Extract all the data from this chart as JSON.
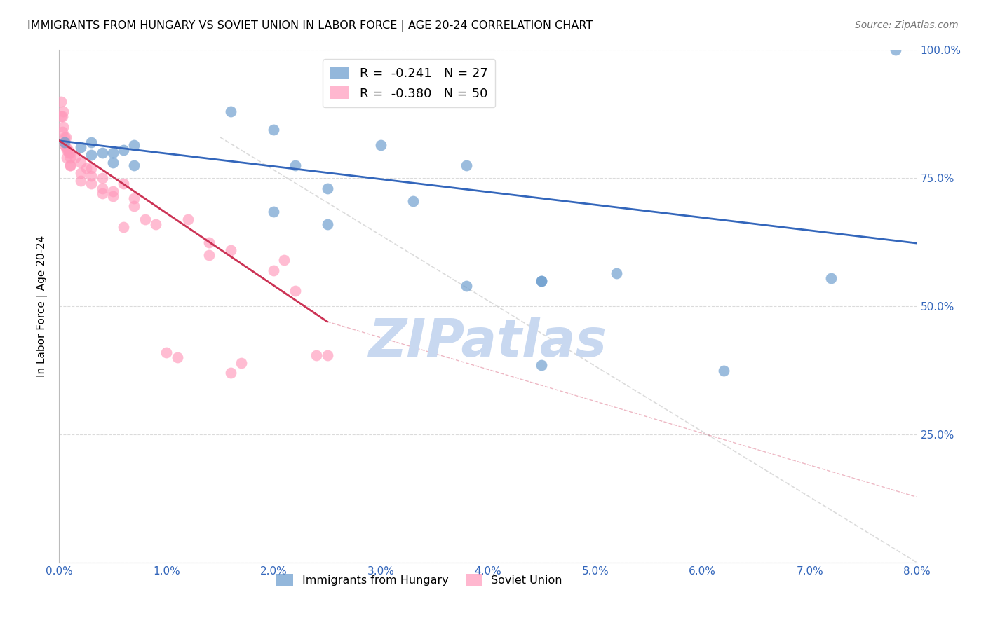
{
  "title": "IMMIGRANTS FROM HUNGARY VS SOVIET UNION IN LABOR FORCE | AGE 20-24 CORRELATION CHART",
  "source": "Source: ZipAtlas.com",
  "ylabel": "In Labor Force | Age 20-24",
  "x_min": 0.0,
  "x_max": 0.08,
  "y_min": 0.0,
  "y_max": 1.0,
  "x_tick_vals": [
    0.0,
    0.01,
    0.02,
    0.03,
    0.04,
    0.05,
    0.06,
    0.07,
    0.08
  ],
  "x_tick_labels": [
    "0.0%",
    "1.0%",
    "2.0%",
    "3.0%",
    "4.0%",
    "5.0%",
    "6.0%",
    "7.0%",
    "8.0%"
  ],
  "y_ticks": [
    0.0,
    0.25,
    0.5,
    0.75,
    1.0
  ],
  "y_tick_labels": [
    "",
    "25.0%",
    "50.0%",
    "75.0%",
    "100.0%"
  ],
  "legend_blue_r": "-0.241",
  "legend_blue_n": "27",
  "legend_pink_r": "-0.380",
  "legend_pink_n": "50",
  "blue_color": "#6699cc",
  "pink_color": "#ff99bb",
  "blue_line_color": "#3366bb",
  "pink_line_color": "#cc3355",
  "watermark_text": "ZIPatlas",
  "watermark_color": "#c8d8f0",
  "blue_line_x0": 0.0,
  "blue_line_x1": 0.08,
  "blue_line_y0": 0.823,
  "blue_line_y1": 0.623,
  "pink_line_x0": 0.0,
  "pink_line_x1": 0.025,
  "pink_line_y0": 0.823,
  "pink_line_y1": 0.47,
  "diag_line_x0": 0.015,
  "diag_line_x1": 0.08,
  "diag_line_y0": 0.83,
  "diag_line_y1": 0.0,
  "blue_scatter_x": [
    0.0005,
    0.002,
    0.003,
    0.003,
    0.004,
    0.005,
    0.005,
    0.006,
    0.007,
    0.007,
    0.016,
    0.02,
    0.022,
    0.025,
    0.03,
    0.033,
    0.038,
    0.038,
    0.045,
    0.045,
    0.052,
    0.062,
    0.072,
    0.078,
    0.02,
    0.025,
    0.045
  ],
  "blue_scatter_y": [
    0.82,
    0.81,
    0.82,
    0.795,
    0.8,
    0.8,
    0.78,
    0.805,
    0.815,
    0.775,
    0.88,
    0.845,
    0.775,
    0.73,
    0.815,
    0.705,
    0.775,
    0.54,
    0.55,
    0.385,
    0.565,
    0.375,
    0.555,
    1.0,
    0.685,
    0.66,
    0.55
  ],
  "pink_scatter_x": [
    0.0002,
    0.0002,
    0.0003,
    0.0003,
    0.0004,
    0.0004,
    0.0005,
    0.0005,
    0.0006,
    0.0006,
    0.0007,
    0.0007,
    0.0008,
    0.0009,
    0.001,
    0.001,
    0.001,
    0.0015,
    0.002,
    0.002,
    0.0025,
    0.003,
    0.003,
    0.004,
    0.004,
    0.005,
    0.006,
    0.007,
    0.008,
    0.009,
    0.01,
    0.011,
    0.012,
    0.014,
    0.016,
    0.017,
    0.02,
    0.021,
    0.022,
    0.024,
    0.001,
    0.002,
    0.003,
    0.004,
    0.005,
    0.006,
    0.007,
    0.014,
    0.016,
    0.025
  ],
  "pink_scatter_y": [
    0.9,
    0.87,
    0.87,
    0.84,
    0.88,
    0.85,
    0.83,
    0.815,
    0.83,
    0.81,
    0.805,
    0.79,
    0.805,
    0.8,
    0.8,
    0.79,
    0.775,
    0.79,
    0.78,
    0.76,
    0.77,
    0.77,
    0.755,
    0.75,
    0.73,
    0.725,
    0.74,
    0.71,
    0.67,
    0.66,
    0.41,
    0.4,
    0.67,
    0.625,
    0.61,
    0.39,
    0.57,
    0.59,
    0.53,
    0.405,
    0.775,
    0.745,
    0.74,
    0.72,
    0.715,
    0.655,
    0.695,
    0.6,
    0.37,
    0.405
  ]
}
